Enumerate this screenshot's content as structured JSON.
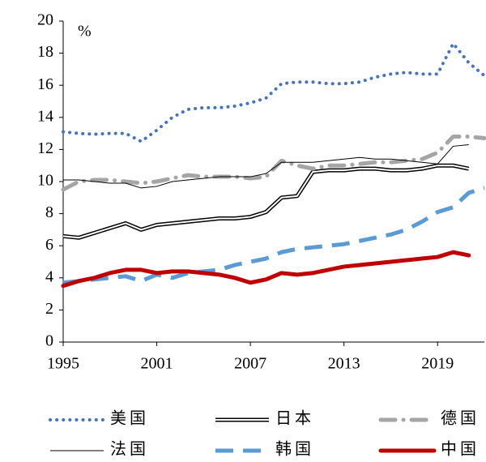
{
  "chart_data": {
    "type": "line",
    "annotations": [
      "%"
    ],
    "x": [
      1995,
      1996,
      1997,
      1998,
      1999,
      2000,
      2001,
      2002,
      2003,
      2004,
      2005,
      2006,
      2007,
      2008,
      2009,
      2010,
      2011,
      2012,
      2013,
      2014,
      2015,
      2016,
      2017,
      2018,
      2019,
      2020,
      2021,
      2022
    ],
    "xlim": [
      1995,
      2022
    ],
    "xticks": [
      1995,
      2001,
      2007,
      2013,
      2019
    ],
    "ylim": [
      0,
      20
    ],
    "yticks": [
      0,
      2,
      4,
      6,
      8,
      10,
      12,
      14,
      16,
      18,
      20
    ],
    "grid": false,
    "legend": "bottom",
    "series": [
      {
        "name": "美国",
        "color": "#4472c4",
        "style": "dotted",
        "values": [
          13.1,
          13.0,
          12.95,
          13.0,
          13.0,
          12.5,
          13.2,
          14.0,
          14.5,
          14.6,
          14.6,
          14.7,
          14.9,
          15.2,
          16.1,
          16.2,
          16.2,
          16.1,
          16.1,
          16.2,
          16.5,
          16.7,
          16.8,
          16.7,
          16.7,
          18.6,
          17.4,
          16.6
        ]
      },
      {
        "name": "日本",
        "color": "#000000",
        "style": "double",
        "values": [
          6.6,
          6.5,
          6.8,
          7.1,
          7.4,
          7.0,
          7.3,
          7.4,
          7.5,
          7.6,
          7.7,
          7.7,
          7.8,
          8.1,
          9.0,
          9.1,
          10.6,
          10.7,
          10.7,
          10.8,
          10.8,
          10.7,
          10.7,
          10.8,
          11.0,
          11.0,
          10.8,
          null
        ]
      },
      {
        "name": "德国",
        "color": "#a5a5a5",
        "style": "dashdot",
        "values": [
          9.5,
          10.0,
          10.1,
          10.1,
          10.0,
          9.9,
          10.0,
          10.2,
          10.4,
          10.3,
          10.3,
          10.3,
          10.2,
          10.3,
          11.3,
          11.0,
          10.8,
          11.0,
          11.0,
          11.1,
          11.2,
          11.2,
          11.3,
          11.4,
          11.8,
          12.8,
          12.8,
          12.7
        ]
      },
      {
        "name": "法国",
        "color": "#000000",
        "style": "thin",
        "values": [
          10.1,
          10.1,
          10.0,
          9.9,
          9.9,
          9.6,
          9.7,
          10.0,
          10.1,
          10.2,
          10.3,
          10.3,
          10.3,
          10.5,
          11.2,
          11.2,
          11.2,
          11.3,
          11.4,
          11.5,
          11.4,
          11.4,
          11.3,
          11.2,
          11.1,
          12.2,
          12.3,
          null
        ]
      },
      {
        "name": "韩国",
        "color": "#5b9bd5",
        "style": "dashed",
        "values": [
          3.7,
          3.8,
          3.9,
          4.0,
          4.1,
          3.8,
          4.2,
          4.0,
          4.3,
          4.4,
          4.5,
          4.8,
          5.0,
          5.2,
          5.6,
          5.8,
          5.9,
          6.0,
          6.1,
          6.3,
          6.5,
          6.7,
          7.0,
          7.5,
          8.1,
          8.4,
          9.3,
          9.6
        ]
      },
      {
        "name": "中国",
        "color": "#c00000",
        "style": "thick",
        "values": [
          3.5,
          3.8,
          4.0,
          4.3,
          4.5,
          4.5,
          4.3,
          4.4,
          4.4,
          4.3,
          4.2,
          4.0,
          3.7,
          3.9,
          4.3,
          4.2,
          4.3,
          4.5,
          4.7,
          4.8,
          4.9,
          5.0,
          5.1,
          5.2,
          5.3,
          5.6,
          5.4,
          null
        ]
      }
    ]
  }
}
